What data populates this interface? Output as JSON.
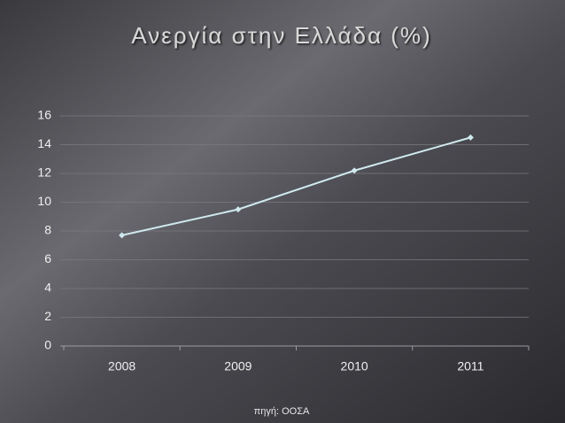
{
  "chart_data": {
    "type": "line",
    "title": "Ανεργία στην Ελλάδα (%)",
    "categories": [
      "2008",
      "2009",
      "2010",
      "2011"
    ],
    "series": [
      {
        "name": "Ανεργία",
        "color": "#cfe9ee",
        "values": [
          7.7,
          9.5,
          12.2,
          14.5
        ]
      }
    ],
    "ylim": [
      0,
      16
    ],
    "yticks": [
      0,
      2,
      4,
      6,
      8,
      10,
      12,
      14,
      16
    ],
    "grid": true,
    "source": "πηγή: ΟΟΣΑ"
  }
}
